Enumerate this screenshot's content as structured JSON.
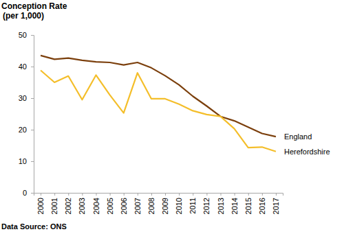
{
  "chart_data": {
    "type": "line",
    "title": "Conception Rate",
    "subtitle": "(per 1,000)",
    "source": "Data Source: ONS",
    "categories": [
      "2000",
      "2001",
      "2002",
      "2003",
      "2004",
      "2005",
      "2006",
      "2007",
      "2008",
      "2009",
      "2010",
      "2011",
      "2012",
      "2013",
      "2014",
      "2015",
      "2016",
      "2017"
    ],
    "series": [
      {
        "name": "England",
        "color": "#7b3f0c",
        "values": [
          43.5,
          42.3,
          42.7,
          42.0,
          41.5,
          41.3,
          40.5,
          41.3,
          39.6,
          37.1,
          34.2,
          30.6,
          27.5,
          24.2,
          22.8,
          20.8,
          18.8,
          17.8
        ]
      },
      {
        "name": "Herefordshire",
        "color": "#f4be2a",
        "values": [
          38.8,
          35.0,
          37.0,
          29.5,
          37.3,
          31.0,
          25.3,
          38.0,
          29.8,
          29.8,
          28.1,
          26.0,
          24.8,
          24.2,
          20.3,
          14.3,
          14.5,
          13.1
        ]
      }
    ],
    "ylim": [
      0,
      50
    ],
    "yticks": [
      0,
      10,
      20,
      30,
      40,
      50
    ],
    "grid": false
  }
}
